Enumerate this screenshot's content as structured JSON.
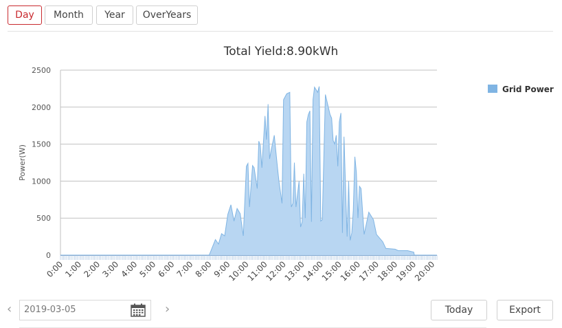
{
  "tabs": [
    {
      "label": "Day",
      "active": true
    },
    {
      "label": "Month",
      "active": false
    },
    {
      "label": "Year",
      "active": false
    },
    {
      "label": "OverYears",
      "active": false
    }
  ],
  "chart_data": {
    "type": "area",
    "title": "Total Yield:8.90kWh",
    "ylabel": "Power(W)",
    "xlabel": "",
    "ylim": [
      0,
      2500
    ],
    "yticks": [
      0,
      500,
      1000,
      1500,
      2000,
      2500
    ],
    "xlim_hours": [
      0,
      20.25
    ],
    "xtick_labels": [
      "0:00",
      "1:00",
      "2:00",
      "3:00",
      "4:00",
      "5:00",
      "6:00",
      "7:00",
      "8:00",
      "9:00",
      "10:00",
      "11:00",
      "12:00",
      "13:00",
      "14:00",
      "15:00",
      "16:00",
      "17:00",
      "18:00",
      "19:00",
      "20:00"
    ],
    "grid": true,
    "legend_position": "top-right",
    "series": [
      {
        "name": "Grid Power",
        "color": "#7fb4e3",
        "fill": "#b8d6f2",
        "x": [
          "0:00",
          "8:00",
          "8:20",
          "8:30",
          "8:40",
          "8:50",
          "9:00",
          "9:10",
          "9:20",
          "9:30",
          "9:40",
          "9:50",
          "10:00",
          "10:05",
          "10:10",
          "10:20",
          "10:25",
          "10:35",
          "10:40",
          "10:45",
          "10:50",
          "11:00",
          "11:05",
          "11:10",
          "11:15",
          "11:20",
          "11:30",
          "11:40",
          "11:45",
          "11:55",
          "12:00",
          "12:10",
          "12:20",
          "12:25",
          "12:30",
          "12:35",
          "12:40",
          "12:50",
          "12:55",
          "13:00",
          "13:05",
          "13:10",
          "13:15",
          "13:20",
          "13:25",
          "13:30",
          "13:35",
          "13:40",
          "13:50",
          "13:55",
          "14:00",
          "14:05",
          "14:15",
          "14:30",
          "14:35",
          "14:40",
          "14:45",
          "14:50",
          "14:55",
          "15:00",
          "15:05",
          "15:10",
          "15:15",
          "15:25",
          "15:30",
          "15:35",
          "15:40",
          "15:45",
          "15:50",
          "15:55",
          "16:00",
          "16:05",
          "16:10",
          "16:20",
          "16:35",
          "16:50",
          "17:00",
          "17:20",
          "17:30",
          "18:00",
          "18:10",
          "18:40",
          "19:00",
          "19:02",
          "20:15"
        ],
        "values": [
          0,
          0,
          210,
          150,
          290,
          260,
          550,
          680,
          460,
          630,
          560,
          260,
          1200,
          1240,
          650,
          1210,
          1180,
          900,
          1540,
          1480,
          1180,
          1880,
          1560,
          2040,
          1300,
          1420,
          1620,
          1200,
          1000,
          700,
          2100,
          2180,
          2200,
          650,
          700,
          1250,
          650,
          1000,
          380,
          450,
          1100,
          500,
          1800,
          1900,
          1950,
          450,
          2100,
          2270,
          2200,
          2280,
          460,
          480,
          2170,
          1900,
          1850,
          1550,
          1500,
          1620,
          1200,
          1800,
          1920,
          300,
          1600,
          250,
          1000,
          200,
          300,
          600,
          1330,
          1120,
          500,
          930,
          900,
          280,
          580,
          480,
          280,
          180,
          90,
          80,
          60,
          60,
          40,
          0,
          0
        ]
      }
    ]
  },
  "date_nav": {
    "prev_icon": "chevron-left-icon",
    "next_icon": "chevron-right-icon",
    "date_value": "2019-03-05",
    "calendar_icon": "calendar-icon"
  },
  "buttons": {
    "today": "Today",
    "export": "Export"
  }
}
